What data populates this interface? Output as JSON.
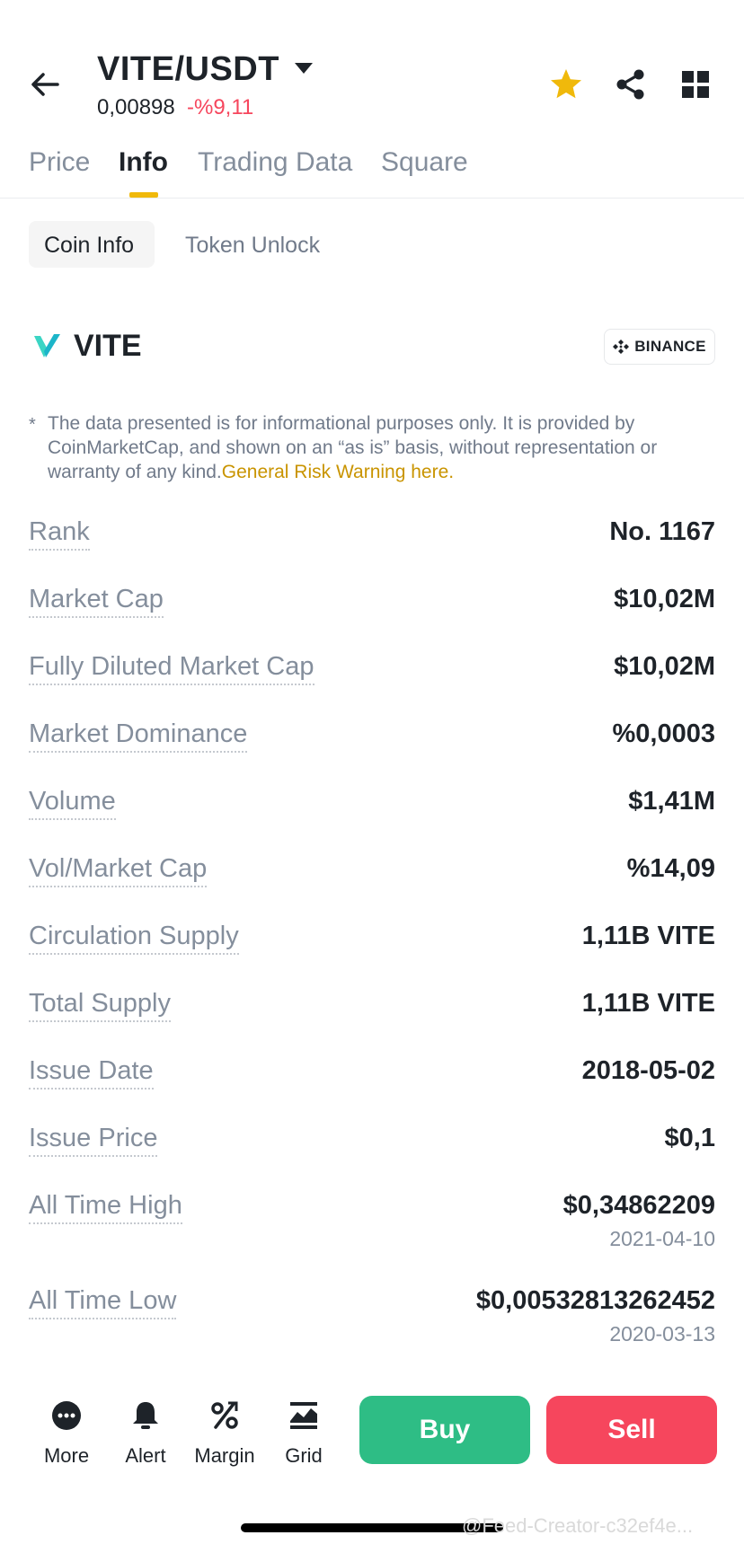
{
  "header": {
    "pair": "VITE/USDT",
    "price": "0,00898",
    "change": "-%9,11"
  },
  "tabs": [
    {
      "label": "Price",
      "active": false
    },
    {
      "label": "Info",
      "active": true
    },
    {
      "label": "Trading Data",
      "active": false
    },
    {
      "label": "Square",
      "active": false
    }
  ],
  "subtabs": [
    {
      "label": "Coin Info",
      "active": true
    },
    {
      "label": "Token Unlock",
      "active": false
    }
  ],
  "coin": {
    "name": "VITE",
    "source_badge": "BINANCE"
  },
  "disclaimer": {
    "marker": "*",
    "text": "The data presented is for informational purposes only. It is provided by CoinMarketCap, and shown on an “as is” basis, without representation or warranty of any kind.",
    "link": "General Risk Warning here."
  },
  "stats": [
    {
      "label": "Rank",
      "value": "No. 1167"
    },
    {
      "label": "Market Cap",
      "value": "$10,02M"
    },
    {
      "label": "Fully Diluted Market Cap",
      "value": "$10,02M"
    },
    {
      "label": "Market Dominance",
      "value": "%0,0003"
    },
    {
      "label": "Volume",
      "value": "$1,41M"
    },
    {
      "label": "Vol/Market Cap",
      "value": "%14,09"
    },
    {
      "label": "Circulation Supply",
      "value": "1,11B VITE"
    },
    {
      "label": "Total Supply",
      "value": "1,11B VITE"
    },
    {
      "label": "Issue Date",
      "value": "2018-05-02"
    },
    {
      "label": "Issue Price",
      "value": "$0,1"
    },
    {
      "label": "All Time High",
      "value": "$0,34862209",
      "sub": "2021-04-10"
    },
    {
      "label": "All Time Low",
      "value": "$0,00532813262452",
      "sub": "2020-03-13"
    }
  ],
  "bottom_bar": {
    "items": [
      {
        "label": "More",
        "icon": "more-icon"
      },
      {
        "label": "Alert",
        "icon": "bell-icon"
      },
      {
        "label": "Margin",
        "icon": "percent-icon"
      },
      {
        "label": "Grid",
        "icon": "grid-bot-icon"
      }
    ],
    "buy": "Buy",
    "sell": "Sell"
  },
  "watermark": "@Feed-Creator-c32ef4e...",
  "colors": {
    "accent": "#f0b90b",
    "buy": "#2ebd85",
    "sell": "#f6465d",
    "link": "#c99400",
    "logo": "#3bd5c4"
  }
}
